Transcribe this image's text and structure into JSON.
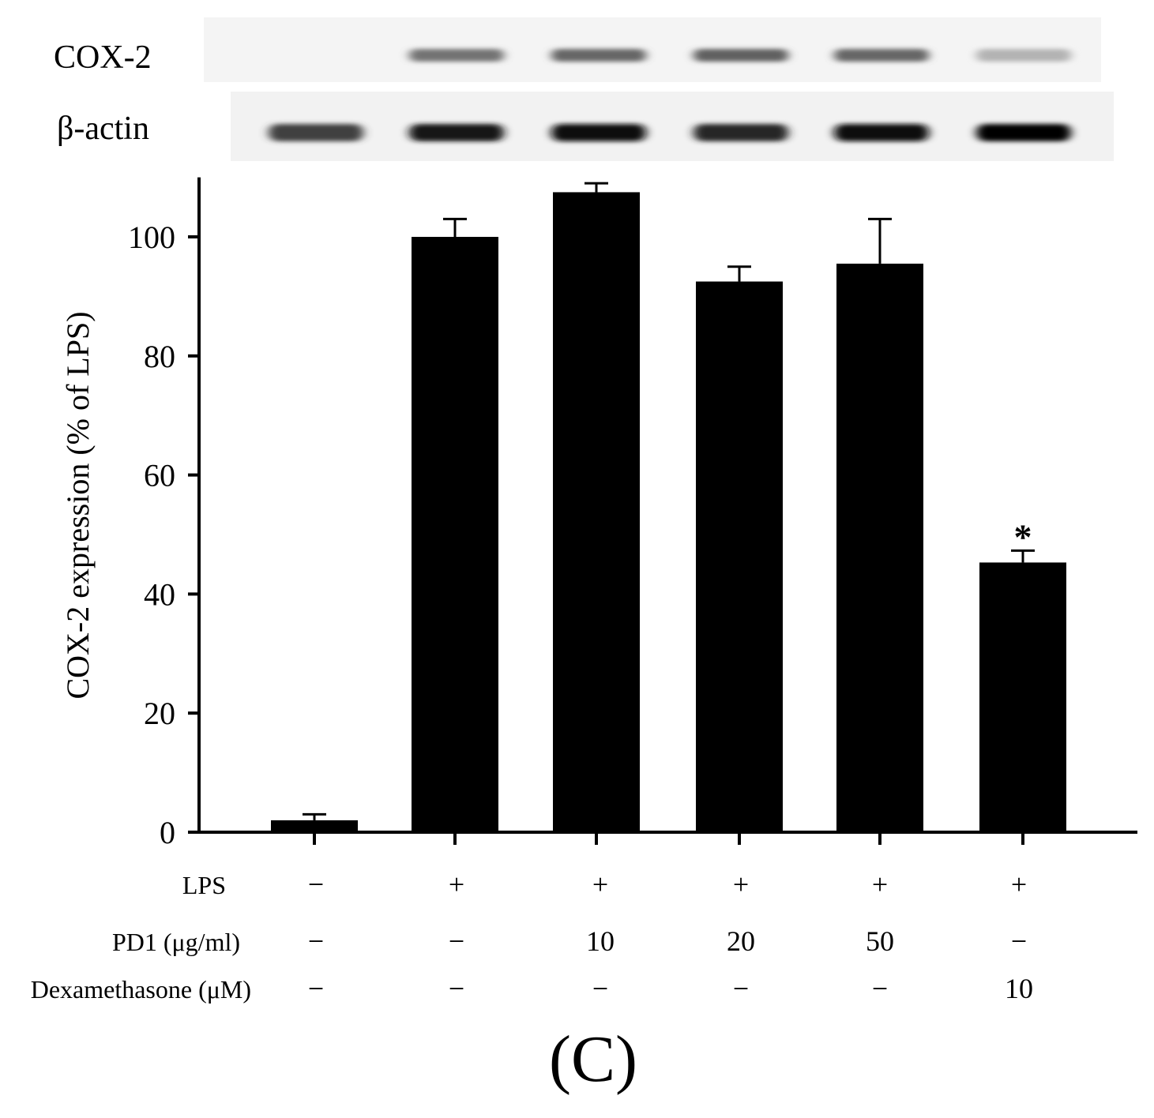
{
  "blot": {
    "rows": [
      {
        "label": "COX-2",
        "intensities": [
          0.0,
          0.55,
          0.6,
          0.62,
          0.6,
          0.3
        ]
      },
      {
        "label": "β-actin",
        "intensities": [
          0.75,
          0.9,
          0.95,
          0.85,
          0.95,
          0.98
        ]
      }
    ]
  },
  "chart_data": {
    "type": "bar",
    "ylabel": "COX-2 expression (% of LPS)",
    "ylim": [
      0,
      110
    ],
    "yticks": [
      0,
      20,
      40,
      60,
      80,
      100
    ],
    "values": [
      2,
      100,
      107.5,
      92.5,
      95.5,
      45.3
    ],
    "errors": [
      1,
      3,
      1.5,
      2.5,
      7.5,
      2
    ],
    "annotations": [
      "",
      "",
      "",
      "",
      "",
      "*"
    ],
    "bar_color": "#000000",
    "treatments": [
      {
        "label": "LPS",
        "values": [
          "−",
          "+",
          "+",
          "+",
          "+",
          "+"
        ]
      },
      {
        "label": "PD1 (μg/ml)",
        "values": [
          "−",
          "−",
          "10",
          "20",
          "50",
          "−"
        ]
      },
      {
        "label": "Dexamethasone (μM)",
        "values": [
          "−",
          "−",
          "−",
          "−",
          "−",
          "10"
        ]
      }
    ]
  },
  "panel_label": "(C)"
}
